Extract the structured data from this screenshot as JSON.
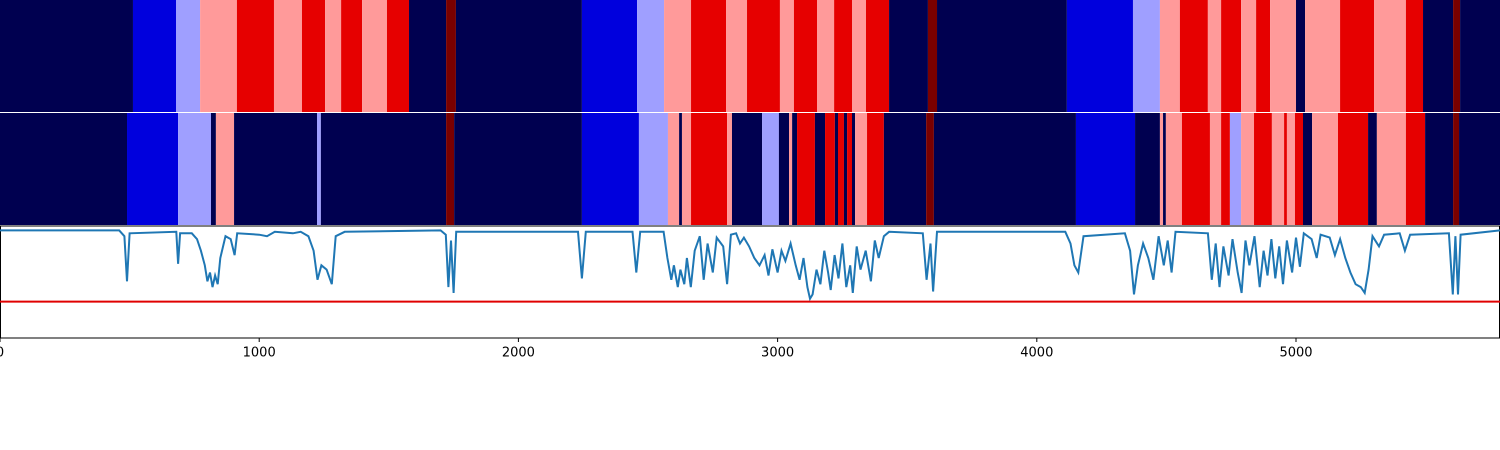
{
  "chart_data": {
    "type": "segments",
    "rows": [
      {
        "edges": [
          0,
          513,
          679,
          772,
          914,
          1057,
          1165,
          1254,
          1316,
          1397,
          1493,
          1578,
          1721,
          1759,
          2245,
          2458,
          2562,
          2666,
          2801,
          2882,
          3009,
          3063,
          3152,
          3218,
          3287,
          3341,
          3430,
          3580,
          3615,
          4116,
          4371,
          4475,
          4552,
          4660,
          4711,
          4788,
          4846,
          4900,
          5000,
          5035,
          5170,
          5301,
          5424,
          5490,
          5606,
          5633,
          5787
        ],
        "colors": [
          "#000050",
          "#0000dd",
          "#9f9fff",
          "#ff9a9a",
          "#e60000",
          "#ff9a9a",
          "#e60000",
          "#ff9a9a",
          "#e60000",
          "#ff9a9a",
          "#e60000",
          "#000050",
          "#7a0000",
          "#000050",
          "#0000dd",
          "#9f9fff",
          "#ff9a9a",
          "#e60000",
          "#ff9a9a",
          "#e60000",
          "#ff9a9a",
          "#e60000",
          "#ff9a9a",
          "#e60000",
          "#ff9a9a",
          "#e60000",
          "#000050",
          "#7a0000",
          "#000050",
          "#0000dd",
          "#9f9fff",
          "#ff9a9a",
          "#e60000",
          "#ff9a9a",
          "#e60000",
          "#ff9a9a",
          "#e60000",
          "#ff9a9a",
          "#000050",
          "#ff9a9a",
          "#e60000",
          "#ff9a9a",
          "#e60000",
          "#000050",
          "#7a0000",
          "#000050"
        ]
      },
      {
        "edges": [
          0,
          490,
          687,
          814,
          833,
          903,
          1223,
          1238,
          1721,
          1752,
          2245,
          2465,
          2577,
          2620,
          2631,
          2666,
          2805,
          2824,
          2940,
          3005,
          3044,
          3056,
          3075,
          3144,
          3183,
          3221,
          3233,
          3256,
          3268,
          3287,
          3299,
          3345,
          3410,
          3573,
          3603,
          4151,
          4379,
          4475,
          4487,
          4498,
          4560,
          4668,
          4711,
          4745,
          4788,
          4838,
          4907,
          4954,
          4965,
          4996,
          5027,
          5062,
          5162,
          5278,
          5312,
          5424,
          5498,
          5606,
          5629,
          5787
        ],
        "colors": [
          "#000050",
          "#0000dd",
          "#9f9fff",
          "#000050",
          "#ff9a9a",
          "#000050",
          "#9f9fff",
          "#000050",
          "#7a0000",
          "#000050",
          "#0000dd",
          "#9f9fff",
          "#ff9a9a",
          "#000050",
          "#ff9a9a",
          "#e60000",
          "#ff9a9a",
          "#000050",
          "#9f9fff",
          "#000050",
          "#ff9a9a",
          "#000050",
          "#e60000",
          "#000050",
          "#e60000",
          "#000050",
          "#e60000",
          "#000050",
          "#e60000",
          "#000050",
          "#ff9a9a",
          "#e60000",
          "#000050",
          "#7a0000",
          "#000050",
          "#0000dd",
          "#000050",
          "#ff9a9a",
          "#000050",
          "#ff9a9a",
          "#e60000",
          "#ff9a9a",
          "#e60000",
          "#9f9fff",
          "#ff9a9a",
          "#e60000",
          "#ff9a9a",
          "#e60000",
          "#ff9a9a",
          "#e60000",
          "#000050",
          "#ff9a9a",
          "#e60000",
          "#000050",
          "#ff9a9a",
          "#e60000",
          "#000050",
          "#7a0000",
          "#000050"
        ]
      }
    ],
    "line": {
      "color": "#1f77b4",
      "x": [
        0,
        460,
        480,
        490,
        500,
        680,
        687,
        695,
        740,
        760,
        775,
        790,
        800,
        810,
        820,
        830,
        840,
        850,
        870,
        890,
        905,
        915,
        1000,
        1030,
        1060,
        1130,
        1160,
        1190,
        1210,
        1225,
        1240,
        1260,
        1280,
        1295,
        1330,
        1700,
        1720,
        1730,
        1740,
        1750,
        1760,
        2230,
        2245,
        2260,
        2440,
        2455,
        2470,
        2560,
        2575,
        2590,
        2600,
        2615,
        2625,
        2640,
        2650,
        2665,
        2680,
        2700,
        2715,
        2730,
        2750,
        2765,
        2790,
        2805,
        2820,
        2840,
        2855,
        2870,
        2890,
        2910,
        2930,
        2950,
        2965,
        2980,
        3000,
        3015,
        3030,
        3050,
        3070,
        3085,
        3100,
        3115,
        3125,
        3135,
        3150,
        3165,
        3180,
        3195,
        3205,
        3220,
        3235,
        3250,
        3265,
        3280,
        3290,
        3305,
        3320,
        3340,
        3360,
        3375,
        3390,
        3410,
        3430,
        3560,
        3575,
        3590,
        3600,
        3615,
        4110,
        4130,
        4145,
        4160,
        4180,
        4340,
        4360,
        4375,
        4390,
        4410,
        4430,
        4450,
        4470,
        4490,
        4505,
        4520,
        4535,
        4660,
        4675,
        4690,
        4705,
        4720,
        4740,
        4755,
        4775,
        4790,
        4805,
        4820,
        4840,
        4860,
        4875,
        4890,
        4905,
        4920,
        4935,
        4950,
        4965,
        4985,
        5000,
        5015,
        5030,
        5060,
        5080,
        5095,
        5130,
        5150,
        5170,
        5190,
        5210,
        5230,
        5250,
        5265,
        5280,
        5295,
        5320,
        5340,
        5400,
        5420,
        5440,
        5590,
        5605,
        5615,
        5625,
        5635,
        5787
      ],
      "y": [
        0.99,
        0.99,
        0.95,
        0.64,
        0.97,
        0.98,
        0.76,
        0.97,
        0.97,
        0.93,
        0.85,
        0.75,
        0.64,
        0.7,
        0.6,
        0.68,
        0.62,
        0.8,
        0.95,
        0.93,
        0.82,
        0.97,
        0.96,
        0.95,
        0.98,
        0.97,
        0.98,
        0.95,
        0.85,
        0.65,
        0.75,
        0.72,
        0.62,
        0.95,
        0.98,
        0.99,
        0.96,
        0.6,
        0.92,
        0.56,
        0.98,
        0.98,
        0.66,
        0.98,
        0.98,
        0.7,
        0.98,
        0.98,
        0.8,
        0.65,
        0.75,
        0.6,
        0.72,
        0.62,
        0.8,
        0.6,
        0.85,
        0.95,
        0.65,
        0.9,
        0.7,
        0.94,
        0.88,
        0.62,
        0.96,
        0.97,
        0.9,
        0.94,
        0.88,
        0.8,
        0.75,
        0.82,
        0.68,
        0.86,
        0.7,
        0.85,
        0.78,
        0.9,
        0.75,
        0.65,
        0.8,
        0.6,
        0.52,
        0.55,
        0.72,
        0.62,
        0.85,
        0.7,
        0.58,
        0.82,
        0.66,
        0.9,
        0.6,
        0.75,
        0.56,
        0.88,
        0.72,
        0.85,
        0.64,
        0.92,
        0.8,
        0.95,
        0.98,
        0.97,
        0.65,
        0.9,
        0.57,
        0.98,
        0.98,
        0.9,
        0.75,
        0.7,
        0.95,
        0.97,
        0.85,
        0.55,
        0.75,
        0.9,
        0.8,
        0.65,
        0.95,
        0.75,
        0.92,
        0.7,
        0.98,
        0.97,
        0.65,
        0.9,
        0.6,
        0.88,
        0.68,
        0.93,
        0.7,
        0.56,
        0.92,
        0.75,
        0.95,
        0.6,
        0.85,
        0.68,
        0.93,
        0.66,
        0.88,
        0.62,
        0.92,
        0.7,
        0.94,
        0.74,
        0.97,
        0.93,
        0.8,
        0.96,
        0.94,
        0.82,
        0.93,
        0.8,
        0.7,
        0.62,
        0.6,
        0.56,
        0.72,
        0.95,
        0.88,
        0.96,
        0.97,
        0.85,
        0.96,
        0.97,
        0.55,
        0.95,
        0.55,
        0.96,
        0.99
      ]
    },
    "threshold": 0.5,
    "threshold_color": "#e00000",
    "xlim": [
      0,
      5787
    ],
    "xticks": [
      0,
      1000,
      2000,
      3000,
      4000,
      5000
    ],
    "ylim": [
      0.25,
      1.02
    ]
  }
}
